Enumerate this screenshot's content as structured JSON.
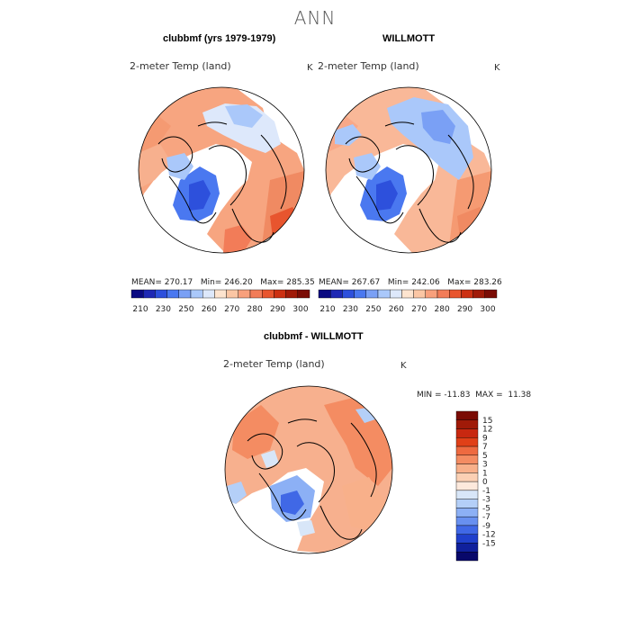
{
  "season": "ANN",
  "panels": [
    {
      "title": "clubbmf (yrs 1979-1979)",
      "variable": "2-meter Temp (land)",
      "unit": "K",
      "stats": "MEAN= 270.17   Min= 246.20   Max= 285.35"
    },
    {
      "title": "WILLMOTT",
      "variable": "2-meter Temp (land)",
      "unit": "K",
      "stats": "MEAN= 267.67   Min= 242.06   Max= 283.26"
    }
  ],
  "abs_colorbar": {
    "colors": [
      "#0a0a82",
      "#1e28b4",
      "#2d50dc",
      "#4a78f0",
      "#7aa0f5",
      "#aac8fa",
      "#dde8fb",
      "#fde4cf",
      "#fbc6a4",
      "#f8a07c",
      "#f27c58",
      "#e8552e",
      "#cc3012",
      "#a01a08",
      "#7a0c05"
    ],
    "labels": [
      "210",
      "230",
      "250",
      "260",
      "270",
      "280",
      "290",
      "300"
    ]
  },
  "diff": {
    "title": "clubbmf - WILLMOTT",
    "variable": "2-meter Temp (land)",
    "unit": "K",
    "stats": "MIN = -11.83  MAX =  11.38"
  },
  "diff_colorbar": {
    "colors": [
      "#7a0c05",
      "#a01a08",
      "#c82810",
      "#e04018",
      "#ee6a40",
      "#f48c62",
      "#f8b08a",
      "#fbd0b4",
      "#fde9dc",
      "#d8e6f8",
      "#b4cff8",
      "#8cb0f5",
      "#6890f0",
      "#4068e6",
      "#2040cc",
      "#10209c",
      "#08086a"
    ],
    "labels": [
      "15",
      "12",
      "9",
      "7",
      "5",
      "3",
      "1",
      "0",
      "-1",
      "-3",
      "-5",
      "-7",
      "-9",
      "-12",
      "-15"
    ]
  }
}
